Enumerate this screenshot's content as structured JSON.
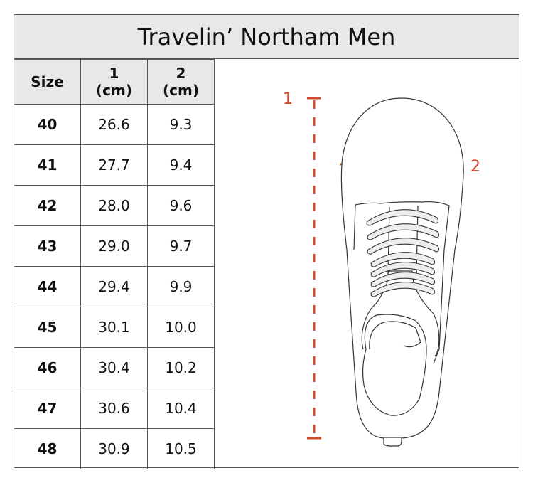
{
  "title": "Travelin’ Northam Men",
  "headers": [
    {
      "top": "Size",
      "bottom": ""
    },
    {
      "top": "1",
      "bottom": "(cm)"
    },
    {
      "top": "2",
      "bottom": "(cm)"
    }
  ],
  "rows": [
    [
      "40",
      "26.6",
      "9.3"
    ],
    [
      "41",
      "27.7",
      "9.4"
    ],
    [
      "42",
      "28.0",
      "9.6"
    ],
    [
      "43",
      "29.0",
      "9.7"
    ],
    [
      "44",
      "29.4",
      "9.9"
    ],
    [
      "45",
      "30.1",
      "10.0"
    ],
    [
      "46",
      "30.4",
      "10.2"
    ],
    [
      "47",
      "30.6",
      "10.4"
    ],
    [
      "48",
      "30.9",
      "10.5"
    ]
  ],
  "diagram": {
    "label_length": "1",
    "label_width": "2",
    "accent_color": "#cf4a2b"
  }
}
